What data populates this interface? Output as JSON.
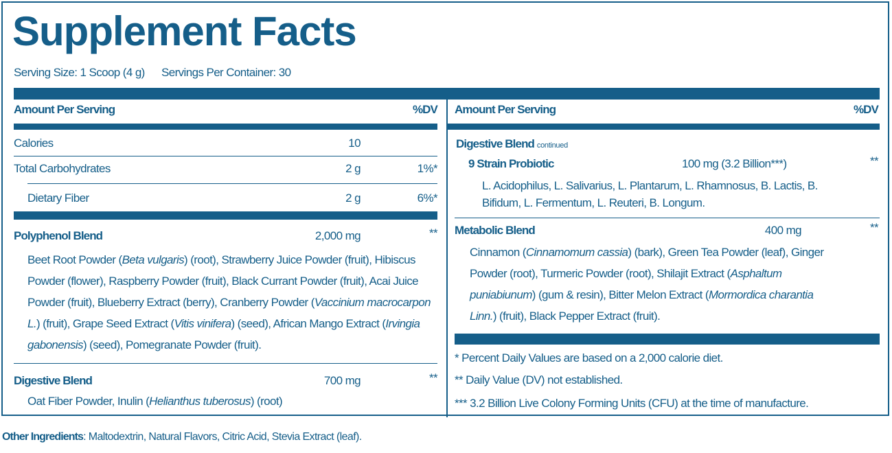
{
  "title": "Supplement Facts",
  "serving_size": "Serving Size: 1 Scoop (4 g)",
  "servings_per_container": "Servings Per Container: 30",
  "brand_color": "#155e89",
  "left": {
    "header": {
      "amount": "Amount Per Serving",
      "dv": "%DV"
    },
    "rows": [
      {
        "name": "Calories",
        "amount": "10",
        "dv": ""
      },
      {
        "name": "Total Carbohydrates",
        "amount": "2 g",
        "dv": "1%*"
      },
      {
        "name": "Dietary Fiber",
        "amount": "2 g",
        "dv": "6%*"
      }
    ],
    "polyphenol": {
      "name": "Polyphenol Blend",
      "amount": "2,000 mg",
      "dv": "**",
      "lines": [
        [
          {
            "t": "Beet Root Powder ("
          },
          {
            "t": "Beta vulgaris",
            "i": true
          },
          {
            "t": ") (root), Strawberry Juice Powder (fruit), Hibiscus"
          }
        ],
        [
          {
            "t": "Powder (flower), Raspberry Powder (fruit), Black Currant Powder (fruit), Acai Juice"
          }
        ],
        [
          {
            "t": "Powder (fruit), Blueberry Extract (berry), Cranberry Powder ("
          },
          {
            "t": "Vaccinium macrocarpon",
            "i": true
          }
        ],
        [
          {
            "t": "L.",
            "i": true
          },
          {
            "t": ") (fruit), Grape Seed Extract ("
          },
          {
            "t": "Vitis vinifera",
            "i": true
          },
          {
            "t": ") (seed), African Mango Extract ("
          },
          {
            "t": "Irvingia",
            "i": true
          }
        ],
        [
          {
            "t": "gabonensis",
            "i": true
          },
          {
            "t": ") (seed), Pomegranate Powder (fruit)."
          }
        ]
      ]
    },
    "digestive": {
      "name": "Digestive Blend",
      "amount": "700 mg",
      "dv": "**",
      "lines": [
        [
          {
            "t": "Oat Fiber Powder, Inulin ("
          },
          {
            "t": "Helianthus tuberosus",
            "i": true
          },
          {
            "t": ") (root)"
          }
        ]
      ]
    }
  },
  "right": {
    "header": {
      "amount": "Amount Per Serving",
      "dv": "%DV"
    },
    "digestive_cont": {
      "name": "Digestive Blend",
      "note": "continued"
    },
    "probiotic": {
      "name": "9 Strain Probiotic",
      "amount": "100 mg (3.2 Billion***)",
      "dv": "**",
      "lines": [
        [
          {
            "t": "L. Acidophilus, L. Salivarius, L. Plantarum, L. Rhamnosus, B. Lactis, B."
          }
        ],
        [
          {
            "t": "Bifidum, L. Fermentum, L. Reuteri, B. Longum."
          }
        ]
      ]
    },
    "metabolic": {
      "name": "Metabolic Blend",
      "amount": "400 mg",
      "dv": "**",
      "lines": [
        [
          {
            "t": "Cinnamon ("
          },
          {
            "t": "Cinnamomum cassia",
            "i": true
          },
          {
            "t": ") (bark), Green Tea Powder (leaf), Ginger"
          }
        ],
        [
          {
            "t": "Powder (root), Turmeric Powder (root), Shilajit Extract ("
          },
          {
            "t": "Asphaltum",
            "i": true
          }
        ],
        [
          {
            "t": "puniabiunum",
            "i": true
          },
          {
            "t": ") (gum & resin), Bitter Melon Extract ("
          },
          {
            "t": "Mormordica charantia",
            "i": true
          }
        ],
        [
          {
            "t": "Linn.",
            "i": true
          },
          {
            "t": ") (fruit), Black Pepper Extract (fruit)."
          }
        ]
      ]
    },
    "footnotes": [
      "* Percent Daily Values are based on a 2,000 calorie diet.",
      "** Daily Value (DV) not established.",
      "*** 3.2 Billion Live Colony Forming Units (CFU) at the time of manufacture."
    ]
  },
  "other_ingredients": {
    "label": "Other Ingredients",
    "text": ": Maltodextrin, Natural Flavors, Citric Acid, Stevia Extract (leaf)."
  }
}
